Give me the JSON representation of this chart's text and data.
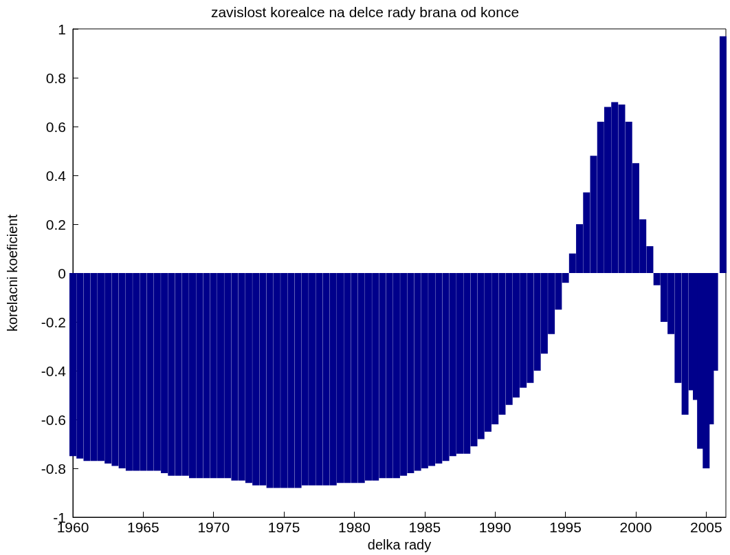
{
  "chart_data": {
    "type": "bar",
    "title": "zavislost korealce na delce rady brana od konce",
    "xlabel": "delka rady",
    "ylabel": "korelacni koeficient",
    "color": "#00008b",
    "x": [
      1960,
      1960.5,
      1961,
      1961.5,
      1962,
      1962.5,
      1963,
      1963.5,
      1964,
      1964.5,
      1965,
      1965.5,
      1966,
      1966.5,
      1967,
      1967.5,
      1968,
      1968.5,
      1969,
      1969.5,
      1970,
      1970.5,
      1971,
      1971.5,
      1972,
      1972.5,
      1973,
      1973.5,
      1974,
      1974.5,
      1975,
      1975.5,
      1976,
      1976.5,
      1977,
      1977.5,
      1978,
      1978.5,
      1979,
      1979.5,
      1980,
      1980.5,
      1981,
      1981.5,
      1982,
      1982.5,
      1983,
      1983.5,
      1984,
      1984.5,
      1985,
      1985.5,
      1986,
      1986.5,
      1987,
      1987.5,
      1988,
      1988.5,
      1989,
      1989.5,
      1990,
      1990.5,
      1991,
      1991.5,
      1992,
      1992.5,
      1993,
      1993.5,
      1994,
      1994.5,
      1995,
      1995.5,
      1996,
      1996.5,
      1997,
      1997.5,
      1998,
      1998.5,
      1999,
      1999.5,
      2000,
      2000.5,
      2001,
      2001.5,
      2002,
      2002.5,
      2003,
      2003.5,
      2004,
      2004.3,
      2004.6,
      2005,
      2005.3,
      2005.6,
      2006.2
    ],
    "values": [
      -0.75,
      -0.76,
      -0.77,
      -0.77,
      -0.77,
      -0.78,
      -0.79,
      -0.8,
      -0.81,
      -0.81,
      -0.81,
      -0.81,
      -0.81,
      -0.82,
      -0.83,
      -0.83,
      -0.83,
      -0.84,
      -0.84,
      -0.84,
      -0.84,
      -0.84,
      -0.84,
      -0.85,
      -0.85,
      -0.86,
      -0.87,
      -0.87,
      -0.88,
      -0.88,
      -0.88,
      -0.88,
      -0.88,
      -0.87,
      -0.87,
      -0.87,
      -0.87,
      -0.87,
      -0.86,
      -0.86,
      -0.86,
      -0.86,
      -0.85,
      -0.85,
      -0.84,
      -0.84,
      -0.84,
      -0.83,
      -0.82,
      -0.81,
      -0.8,
      -0.79,
      -0.78,
      -0.77,
      -0.75,
      -0.74,
      -0.74,
      -0.71,
      -0.68,
      -0.65,
      -0.62,
      -0.58,
      -0.54,
      -0.51,
      -0.47,
      -0.45,
      -0.4,
      -0.33,
      -0.25,
      -0.15,
      -0.04,
      0.08,
      0.2,
      0.33,
      0.48,
      0.62,
      0.68,
      0.7,
      0.69,
      0.62,
      0.45,
      0.22,
      0.11,
      -0.05,
      -0.2,
      -0.25,
      -0.45,
      -0.58,
      -0.48,
      -0.52,
      -0.72,
      -0.8,
      -0.62,
      -0.4,
      0.97
    ],
    "xlim": [
      1960,
      2006.4
    ],
    "xticks": [
      1960,
      1965,
      1970,
      1975,
      1980,
      1985,
      1990,
      1995,
      2000,
      2005
    ],
    "ylim": [
      -1,
      1
    ],
    "yticks": [
      -1,
      -0.8,
      -0.6,
      -0.4,
      -0.2,
      0,
      0.2,
      0.4,
      0.6,
      0.8,
      1
    ],
    "grid": false
  }
}
